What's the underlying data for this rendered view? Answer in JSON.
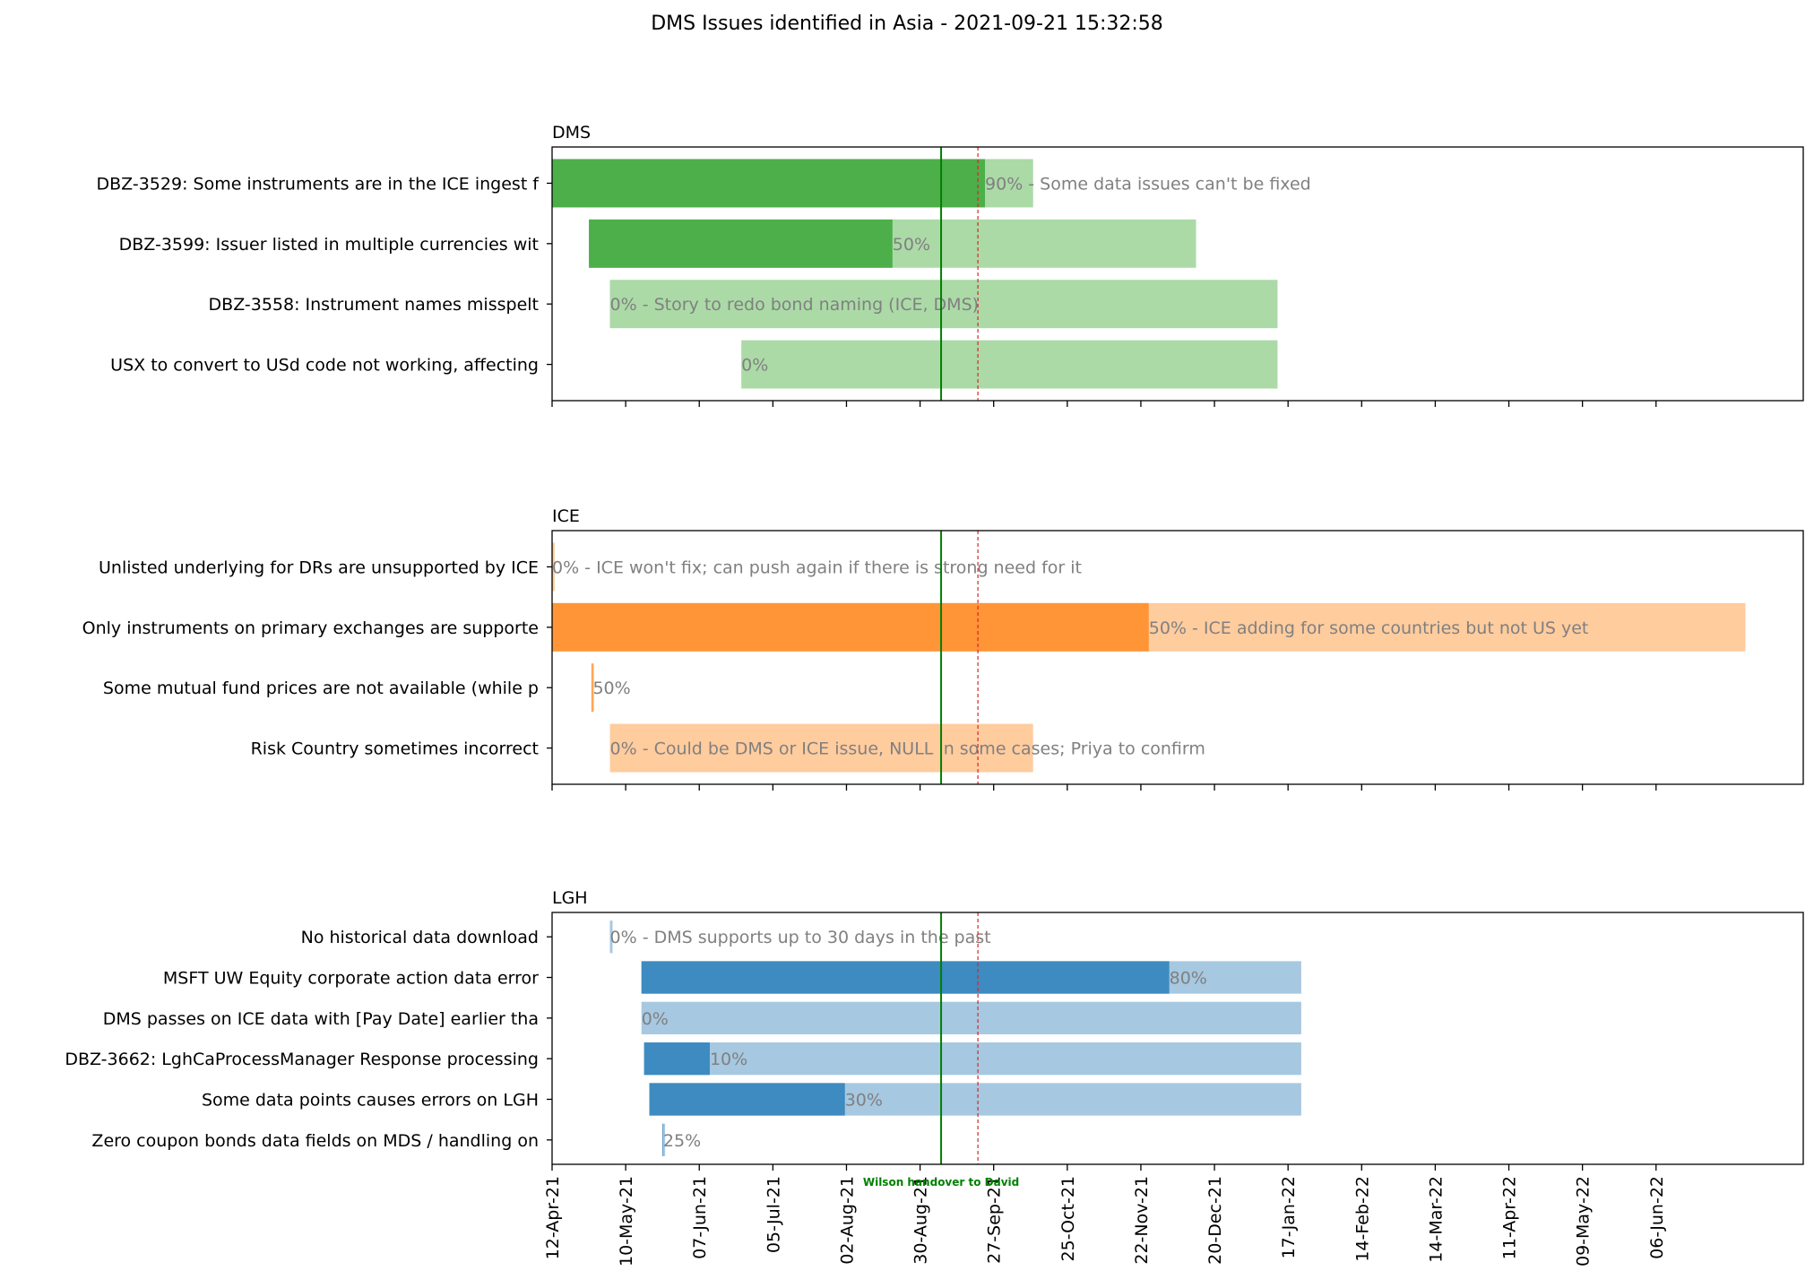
{
  "chart_data": {
    "type": "gantt",
    "title": "DMS Issues identified in Asia - 2021-09-21 15:32:58",
    "x_axis": {
      "type": "date",
      "tick_labels": [
        "12-Apr-21",
        "10-May-21",
        "07-Jun-21",
        "05-Jul-21",
        "02-Aug-21",
        "30-Aug-21",
        "27-Sep-21",
        "25-Oct-21",
        "22-Nov-21",
        "20-Dec-21",
        "17-Jan-22",
        "14-Feb-22",
        "14-Mar-22",
        "11-Apr-22",
        "09-May-22",
        "06-Jun-22"
      ],
      "tick_dates": [
        "2021-04-12",
        "2021-05-10",
        "2021-06-07",
        "2021-07-05",
        "2021-08-02",
        "2021-08-30",
        "2021-09-27",
        "2021-10-25",
        "2021-11-22",
        "2021-12-20",
        "2022-01-17",
        "2022-02-14",
        "2022-03-14",
        "2022-04-11",
        "2022-05-09",
        "2022-06-06"
      ],
      "range": [
        "2021-04-12",
        "2022-08-01"
      ]
    },
    "today_line": {
      "date": "2021-09-21",
      "color": "#d62728",
      "style": "dashed"
    },
    "milestone": {
      "date": "2021-09-07",
      "label": "Wilson handover to David",
      "color": "#008000"
    },
    "panels": [
      {
        "name": "DMS",
        "fill_color": "#4daf4a",
        "light_color": "#abdaa7",
        "tasks": [
          {
            "label": "DBZ-3529: Some instruments are in the ICE ingest f",
            "start": "2021-04-12",
            "end": "2021-10-12",
            "progress": 0.9,
            "note": "90% - Some data issues can't be fixed"
          },
          {
            "label": "DBZ-3599: Issuer listed in multiple currencies wit",
            "start": "2021-04-26",
            "end": "2021-12-13",
            "progress": 0.5,
            "note": "50%"
          },
          {
            "label": "DBZ-3558: Instrument names misspelt",
            "start": "2021-05-04",
            "end": "2022-01-13",
            "progress": 0.0,
            "note": "0% - Story to redo bond naming (ICE, DMS)"
          },
          {
            "label": "USX to convert to USd code not working, affecting ",
            "start": "2021-06-23",
            "end": "2022-01-13",
            "progress": 0.0,
            "note": "0%"
          }
        ]
      },
      {
        "name": "ICE",
        "fill_color": "#ff9536",
        "light_color": "#ffcc9e",
        "tasks": [
          {
            "label": "Unlisted underlying for DRs are unsupported by ICE",
            "start": "2021-04-12",
            "end": "2021-04-13",
            "progress": 0.0,
            "note": "0% - ICE won't fix; can push again if there is strong need for it"
          },
          {
            "label": "Only instruments on primary exchanges are supporte",
            "start": "2021-04-12",
            "end": "2022-07-10",
            "progress": 0.5,
            "note": "50% - ICE adding for some countries but not US yet"
          },
          {
            "label": "Some mutual fund prices are not available (while p",
            "start": "2021-04-27",
            "end": "2021-04-28",
            "progress": 0.5,
            "note": "50%"
          },
          {
            "label": "Risk Country sometimes incorrect",
            "start": "2021-05-04",
            "end": "2021-10-12",
            "progress": 0.0,
            "note": "0% - Could be DMS or ICE issue, NULL in some cases; Priya to confirm"
          }
        ]
      },
      {
        "name": "LGH",
        "fill_color": "#3d8bc0",
        "light_color": "#a6c8e1",
        "tasks": [
          {
            "label": "No historical data download",
            "start": "2021-05-04",
            "end": "2021-05-05",
            "progress": 0.0,
            "note": "0% - DMS supports up to 30 days in the past"
          },
          {
            "label": "MSFT UW Equity corporate action data error",
            "start": "2021-05-16",
            "end": "2022-01-22",
            "progress": 0.8,
            "note": "80%"
          },
          {
            "label": "DMS passes on ICE data with [Pay Date] earlier tha",
            "start": "2021-05-16",
            "end": "2022-01-22",
            "progress": 0.0,
            "note": "0%"
          },
          {
            "label": "DBZ-3662: LghCaProcessManager Response processing ",
            "start": "2021-05-17",
            "end": "2022-01-22",
            "progress": 0.1,
            "note": "10%"
          },
          {
            "label": "Some data points causes errors on LGH",
            "start": "2021-05-19",
            "end": "2022-01-22",
            "progress": 0.3,
            "note": "30%"
          },
          {
            "label": "Zero coupon bonds data fields on MDS / handling on",
            "start": "2021-05-24",
            "end": "2021-05-25",
            "progress": 0.25,
            "note": "25%"
          }
        ]
      }
    ]
  }
}
